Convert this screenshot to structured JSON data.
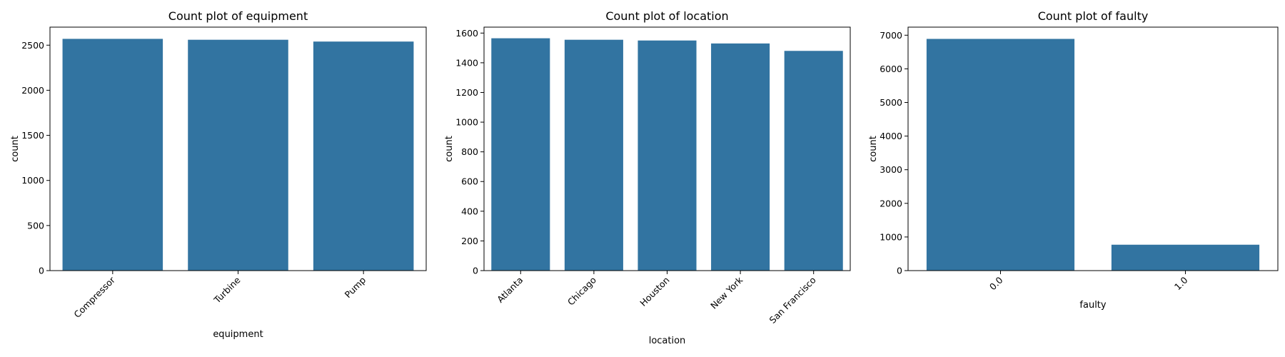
{
  "colors": {
    "bar": "#3274a1",
    "axis": "#000000",
    "background": "#ffffff"
  },
  "chart_data": [
    {
      "type": "bar",
      "title": "Count plot of equipment",
      "xlabel": "equipment",
      "ylabel": "count",
      "categories": [
        "Compressor",
        "Turbine",
        "Pump"
      ],
      "values": [
        2570,
        2560,
        2540
      ],
      "ylim": [
        0,
        2700
      ],
      "yticks": [
        0,
        500,
        1000,
        1500,
        2000,
        2500
      ],
      "xtick_rotation": 45,
      "grid": false
    },
    {
      "type": "bar",
      "title": "Count plot of location",
      "xlabel": "location",
      "ylabel": "count",
      "categories": [
        "Atlanta",
        "Chicago",
        "Houston",
        "New York",
        "San Francisco"
      ],
      "values": [
        1565,
        1555,
        1550,
        1530,
        1480
      ],
      "ylim": [
        0,
        1640
      ],
      "yticks": [
        0,
        200,
        400,
        600,
        800,
        1000,
        1200,
        1400,
        1600
      ],
      "xtick_rotation": 45,
      "grid": false
    },
    {
      "type": "bar",
      "title": "Count plot of faulty",
      "xlabel": "faulty",
      "ylabel": "count",
      "categories": [
        "0.0",
        "1.0"
      ],
      "values": [
        6890,
        770
      ],
      "ylim": [
        0,
        7240
      ],
      "yticks": [
        0,
        1000,
        2000,
        3000,
        4000,
        5000,
        6000,
        7000
      ],
      "xtick_rotation": 45,
      "grid": false
    }
  ]
}
